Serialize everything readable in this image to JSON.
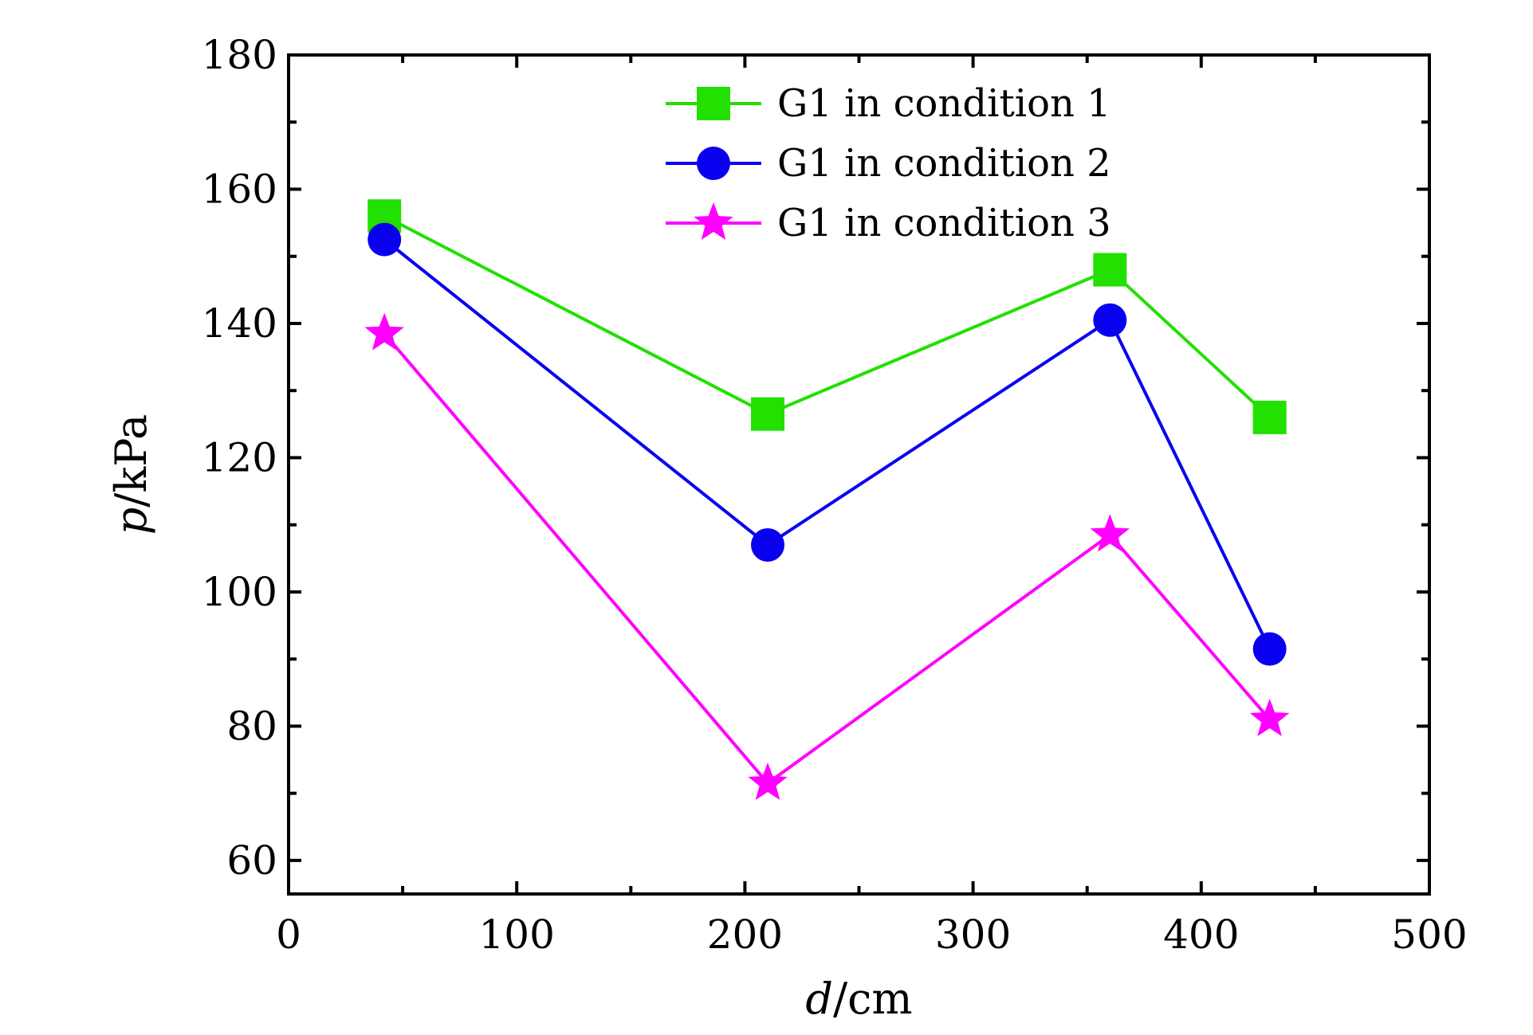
{
  "chart_data": {
    "type": "line",
    "xlabel": "d/cm",
    "xlabel_italic": "d",
    "xlabel_unit": "/cm",
    "ylabel": "p/kPa",
    "ylabel_italic": "p",
    "ylabel_unit": "/kPa",
    "xlim": [
      0,
      500
    ],
    "ylim": [
      55,
      180
    ],
    "xticks": [
      0,
      100,
      200,
      300,
      400,
      500
    ],
    "yticks": [
      60,
      80,
      100,
      120,
      140,
      160,
      180
    ],
    "grid": false,
    "legend_position": "top-center",
    "series": [
      {
        "name": "G1 in condition 1",
        "color": "#22e000",
        "marker": "square",
        "x": [
          42,
          210,
          360,
          430
        ],
        "y": [
          156,
          126.5,
          148,
          126
        ]
      },
      {
        "name": "G1 in condition 2",
        "color": "#0a00f0",
        "marker": "circle",
        "x": [
          42,
          210,
          360,
          430
        ],
        "y": [
          152.5,
          107,
          140.5,
          91.5
        ]
      },
      {
        "name": "G1 in condition 3",
        "color": "#ff00ff",
        "marker": "star",
        "x": [
          42,
          210,
          360,
          430
        ],
        "y": [
          138.5,
          71.5,
          108.5,
          81
        ]
      }
    ]
  }
}
